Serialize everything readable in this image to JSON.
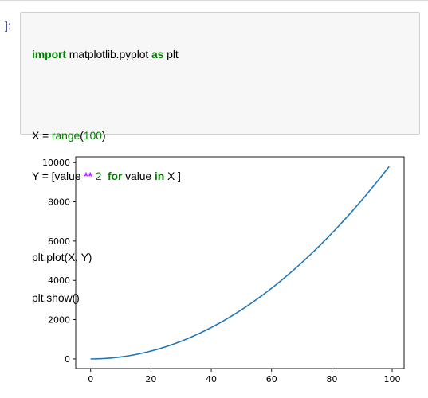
{
  "cell": {
    "prompt": "]:",
    "code": {
      "line1": {
        "kw_import": "import",
        "module": " matplotlib.pyplot ",
        "kw_as": "as",
        "alias": " plt"
      },
      "line3": {
        "lhs": "X = ",
        "func": "range",
        "open": "(",
        "arg": "100",
        "close": ")"
      },
      "line4": {
        "lhs": "Y = [value ",
        "op": "**",
        "space": " ",
        "num": "2",
        "gap": "  ",
        "kw_for": "for",
        "mid": " value ",
        "kw_in": "in",
        "rhs": " X ]"
      },
      "line6": "plt.plot(X, Y)",
      "line7": "plt.show()"
    }
  },
  "chart_data": {
    "type": "line",
    "series": [
      {
        "color": "#1f77b4",
        "x_range": [
          0,
          99
        ],
        "function": "y = x^2",
        "values_sample": {
          "x": [
            0,
            10,
            20,
            30,
            40,
            50,
            60,
            70,
            80,
            90,
            99
          ],
          "y": [
            0,
            100,
            400,
            900,
            1600,
            2500,
            3600,
            4900,
            6400,
            8100,
            9801
          ]
        }
      }
    ],
    "xlim": [
      -4.95,
      103.95
    ],
    "ylim": [
      -490.05,
      10291.05
    ],
    "xticks": [
      "0",
      "20",
      "40",
      "60",
      "80",
      "100"
    ],
    "yticks": [
      "0",
      "2000",
      "4000",
      "6000",
      "8000",
      "10000"
    ],
    "title": "",
    "xlabel": "",
    "ylabel": "",
    "grid": false
  }
}
